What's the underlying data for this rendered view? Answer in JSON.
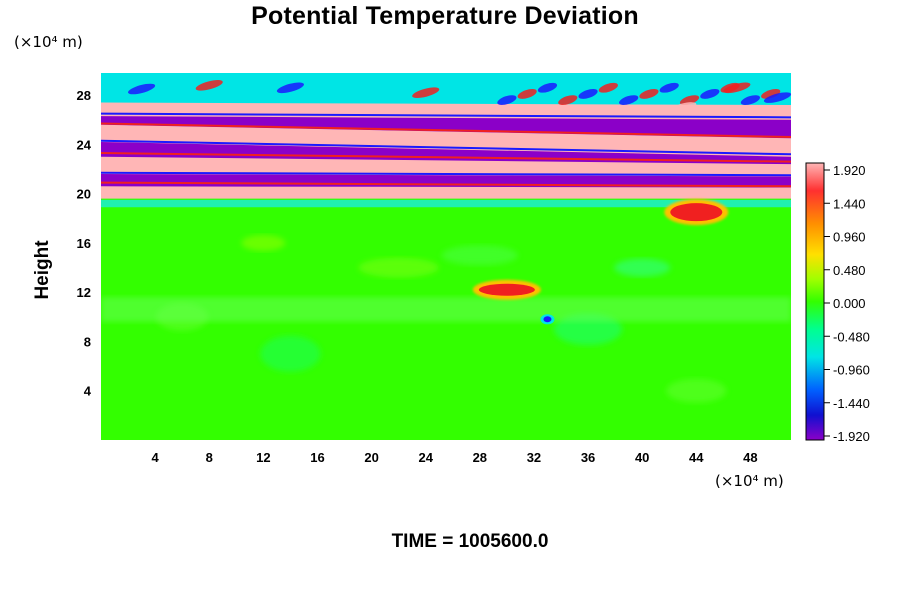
{
  "chart_data": {
    "type": "heatmap",
    "title": "Potential Temperature Deviation",
    "ylabel": "Height",
    "xlabel": "",
    "x_unit": "(×10⁴ m)",
    "y_unit": "(×10⁴ m)",
    "xlim": [
      0,
      51
    ],
    "ylim": [
      0,
      29.8
    ],
    "x_ticks": [
      4,
      8,
      12,
      16,
      20,
      24,
      28,
      32,
      36,
      40,
      44,
      48
    ],
    "y_ticks": [
      4,
      8,
      12,
      16,
      20,
      24,
      28
    ],
    "colorbar": {
      "labels": [
        "1.920",
        "1.440",
        "0.960",
        "0.480",
        "0.000",
        "-0.480",
        "-0.960",
        "-1.440",
        "-1.920"
      ],
      "min": -1.92,
      "max": 1.92
    },
    "field_features": [
      {
        "region": "background",
        "y_range": [
          0,
          19
        ],
        "value": 0.1
      },
      {
        "region": "warm_band",
        "y_range": [
          19.5,
          20.8
        ],
        "value": 1.92
      },
      {
        "region": "cold_band",
        "y_range": [
          20.8,
          21.8
        ],
        "value": -1.92
      },
      {
        "region": "warm_band",
        "y_range": [
          21.8,
          23.0
        ],
        "value": 1.92
      },
      {
        "region": "cold_band",
        "y_range": [
          23.0,
          24.0
        ],
        "value": -1.92
      },
      {
        "region": "warm_band",
        "y_range": [
          24.0,
          25.5
        ],
        "value": 1.92
      },
      {
        "region": "warm_patch",
        "x": 44,
        "y": 18.5,
        "value": 1.6
      },
      {
        "region": "warm_patch",
        "x": 30,
        "y": 12.2,
        "value": 1.5
      },
      {
        "region": "cold_patch",
        "x": 33,
        "y": 9.8,
        "value": -1.4
      }
    ],
    "time_label": "TIME = 1005600.0"
  },
  "colors": {
    "pink": "#ffb6b6",
    "red": "#f02020",
    "green": "#33ff00",
    "purple": "#8b00c8",
    "blue": "#1a1aff",
    "cyan": "#00e5e5"
  }
}
